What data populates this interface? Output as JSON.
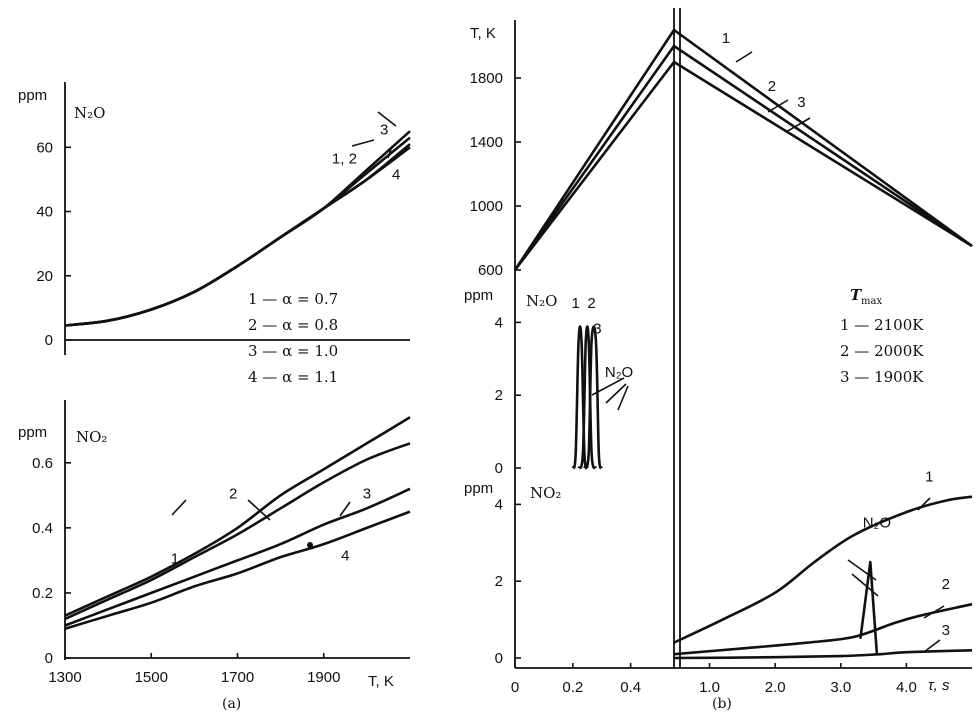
{
  "chart_data": [
    {
      "id": "a-top",
      "type": "line",
      "ylabel_unit": "ppm",
      "species": "N₂O",
      "x_domain": [
        1300,
        2100
      ],
      "y_domain": [
        0,
        66
      ],
      "x_ticks": [],
      "y_ticks": [
        {
          "v": 0,
          "t": "0"
        },
        {
          "v": 20,
          "t": "20"
        },
        {
          "v": 40,
          "t": "40"
        },
        {
          "v": 60,
          "t": "60"
        }
      ],
      "series": [
        {
          "name": "1",
          "x": [
            1300,
            1400,
            1500,
            1600,
            1700,
            1800,
            1900,
            2000,
            2100
          ],
          "y": [
            4.5,
            6,
            9.5,
            15,
            23,
            32,
            41,
            50,
            60
          ]
        },
        {
          "name": "2",
          "x": [
            1300,
            1400,
            1500,
            1600,
            1700,
            1800,
            1900,
            2000,
            2100
          ],
          "y": [
            4.5,
            6,
            9.5,
            15,
            23,
            32,
            41,
            50,
            61
          ]
        },
        {
          "name": "3",
          "x": [
            1300,
            1400,
            1500,
            1600,
            1700,
            1800,
            1900,
            2000,
            2100
          ],
          "y": [
            4.5,
            6,
            9.5,
            15,
            23,
            32,
            41,
            53,
            65
          ]
        },
        {
          "name": "4",
          "x": [
            1300,
            1400,
            1500,
            1600,
            1700,
            1800,
            1900,
            2000,
            2100
          ],
          "y": [
            4.5,
            6,
            9.5,
            15,
            23,
            32,
            41,
            52,
            63
          ]
        }
      ],
      "curve_labels": [
        {
          "t": "3",
          "x": 2040,
          "y": 64
        },
        {
          "t": "1, 2",
          "x": 1948,
          "y": 55
        },
        {
          "t": "4",
          "x": 2068,
          "y": 50
        }
      ],
      "legend": [
        "1 — α = 0.7",
        "2 — α = 0.8",
        "3 — α = 1.0",
        "4 — α = 1.1"
      ]
    },
    {
      "id": "a-bottom",
      "type": "line",
      "ylabel_unit": "ppm",
      "species": "NO₂",
      "xlabel": "T, K",
      "caption": "(a)",
      "x_domain": [
        1300,
        2100
      ],
      "y_domain": [
        0,
        0.75
      ],
      "x_ticks": [
        {
          "v": 1300,
          "t": "1300"
        },
        {
          "v": 1500,
          "t": "1500"
        },
        {
          "v": 1700,
          "t": "1700"
        },
        {
          "v": 1900,
          "t": "1900"
        }
      ],
      "y_ticks": [
        {
          "v": 0,
          "t": "0"
        },
        {
          "v": 0.2,
          "t": "0.2"
        },
        {
          "v": 0.4,
          "t": "0.4"
        },
        {
          "v": 0.6,
          "t": "0.6"
        }
      ],
      "series": [
        {
          "name": "1",
          "x": [
            1300,
            1400,
            1500,
            1600,
            1700,
            1800,
            1900,
            2000,
            2100
          ],
          "y": [
            0.13,
            0.19,
            0.25,
            0.32,
            0.4,
            0.5,
            0.58,
            0.66,
            0.74
          ]
        },
        {
          "name": "2",
          "x": [
            1300,
            1400,
            1500,
            1600,
            1700,
            1800,
            1900,
            2000,
            2100
          ],
          "y": [
            0.12,
            0.18,
            0.24,
            0.31,
            0.38,
            0.46,
            0.54,
            0.61,
            0.66
          ]
        },
        {
          "name": "3",
          "x": [
            1300,
            1400,
            1500,
            1600,
            1700,
            1800,
            1900,
            2000,
            2100
          ],
          "y": [
            0.1,
            0.15,
            0.2,
            0.25,
            0.3,
            0.35,
            0.41,
            0.46,
            0.52
          ]
        },
        {
          "name": "4",
          "x": [
            1300,
            1400,
            1500,
            1600,
            1700,
            1800,
            1900,
            2000,
            2100
          ],
          "y": [
            0.09,
            0.13,
            0.17,
            0.22,
            0.26,
            0.31,
            0.35,
            0.4,
            0.45
          ]
        }
      ],
      "curve_labels": [
        {
          "t": "1",
          "x": 1555,
          "y": 0.29
        },
        {
          "t": "2",
          "x": 1690,
          "y": 0.49
        },
        {
          "t": "3",
          "x": 2000,
          "y": 0.49
        },
        {
          "t": "4",
          "x": 1950,
          "y": 0.3
        }
      ]
    },
    {
      "id": "b-top",
      "type": "line",
      "ylabel": "T, K",
      "x_domain": [
        0,
        5
      ],
      "y_domain": [
        600,
        2150
      ],
      "x_ticks": [],
      "y_ticks": [
        {
          "v": 600,
          "t": "600"
        },
        {
          "v": 1000,
          "t": "1000"
        },
        {
          "v": 1400,
          "t": "1400"
        },
        {
          "v": 1800,
          "t": "1800"
        }
      ],
      "series": [
        {
          "name": "1",
          "x": [
            0,
            0.55,
            5
          ],
          "y": [
            600,
            2100,
            750
          ]
        },
        {
          "name": "2",
          "x": [
            0,
            0.55,
            5
          ],
          "y": [
            600,
            2000,
            750
          ]
        },
        {
          "name": "3",
          "x": [
            0,
            0.55,
            5
          ],
          "y": [
            600,
            1900,
            750
          ]
        }
      ],
      "curve_labels": [
        {
          "t": "1",
          "x": 1.25,
          "y": 2020
        },
        {
          "t": "2",
          "x": 1.95,
          "y": 1720
        },
        {
          "t": "3",
          "x": 2.4,
          "y": 1620
        }
      ]
    },
    {
      "id": "b-mid",
      "type": "line",
      "ylabel_unit": "ppm",
      "species": "N₂O",
      "x_domain": [
        0,
        5
      ],
      "y_domain": [
        0,
        5
      ],
      "x_ticks": [],
      "y_ticks": [
        {
          "v": 0,
          "t": "0"
        },
        {
          "v": 2,
          "t": "2"
        },
        {
          "v": 4,
          "t": "4"
        }
      ],
      "series": [
        {
          "name": "1",
          "x": [
            0.2,
            0.21,
            0.22,
            0.23,
            0.24,
            0.25
          ],
          "y": [
            0,
            0.4,
            3.5,
            3.5,
            0.4,
            0
          ]
        },
        {
          "name": "2",
          "x": [
            0.22,
            0.235,
            0.245,
            0.255,
            0.265,
            0.28
          ],
          "y": [
            0,
            0.4,
            3.5,
            3.5,
            0.4,
            0
          ]
        },
        {
          "name": "3",
          "x": [
            0.24,
            0.255,
            0.265,
            0.28,
            0.29,
            0.3
          ],
          "y": [
            0,
            0.4,
            3.5,
            3.5,
            0.4,
            0
          ]
        }
      ],
      "curve_labels": [
        {
          "t": "1",
          "x": 0.21,
          "y": 4.4
        },
        {
          "t": "2",
          "x": 0.265,
          "y": 4.4
        },
        {
          "t": "3",
          "x": 0.285,
          "y": 3.7
        },
        {
          "t": "N₂O",
          "x": 0.36,
          "y": 2.5
        }
      ],
      "legend_title": "T",
      "legend_title_sub": "max",
      "legend": [
        "1 — 2100K",
        "2 — 2000K",
        "3 — 1900K"
      ]
    },
    {
      "id": "b-bottom",
      "type": "line",
      "ylabel_unit": "ppm",
      "species": "NO₂",
      "xlabel": "τ, s",
      "caption": "(b)",
      "x_domain": [
        0,
        5
      ],
      "y_domain": [
        0,
        5
      ],
      "x_ticks": [
        {
          "v": 0,
          "t": "0"
        },
        {
          "v": 0.2,
          "t": "0.2"
        },
        {
          "v": 0.4,
          "t": "0.4"
        },
        {
          "v": 1,
          "t": "1.0"
        },
        {
          "v": 2,
          "t": "2.0"
        },
        {
          "v": 3,
          "t": "3.0"
        },
        {
          "v": 4,
          "t": "4.0"
        }
      ],
      "y_ticks": [
        {
          "v": 0,
          "t": "0"
        },
        {
          "v": 2,
          "t": "2"
        },
        {
          "v": 4,
          "t": "4"
        }
      ],
      "series": [
        {
          "name": "1",
          "x": [
            0.55,
            1.2,
            2.0,
            2.6,
            3.2,
            4.0,
            4.6,
            5.0
          ],
          "y": [
            0.4,
            1.0,
            1.7,
            2.5,
            3.2,
            3.8,
            4.1,
            4.2
          ]
        },
        {
          "name": "2",
          "x": [
            0.55,
            1.5,
            2.5,
            3.2,
            3.8,
            4.2,
            5.0
          ],
          "y": [
            0.1,
            0.25,
            0.4,
            0.55,
            0.9,
            1.1,
            1.4
          ]
        },
        {
          "name": "3",
          "x": [
            0.55,
            2.0,
            3.0,
            3.6,
            4.0,
            5.0
          ],
          "y": [
            0,
            0.02,
            0.05,
            0.1,
            0.15,
            0.2
          ]
        }
      ],
      "n2o_peak": {
        "x": [
          3.3,
          3.45,
          3.55
        ],
        "y": [
          0.5,
          2.5,
          0.1
        ]
      },
      "curve_labels": [
        {
          "t": "1",
          "x": 4.35,
          "y": 4.6
        },
        {
          "t": "2",
          "x": 4.6,
          "y": 1.8
        },
        {
          "t": "3",
          "x": 4.6,
          "y": 0.6
        },
        {
          "t": "N₂O",
          "x": 3.55,
          "y": 3.4
        }
      ]
    }
  ]
}
